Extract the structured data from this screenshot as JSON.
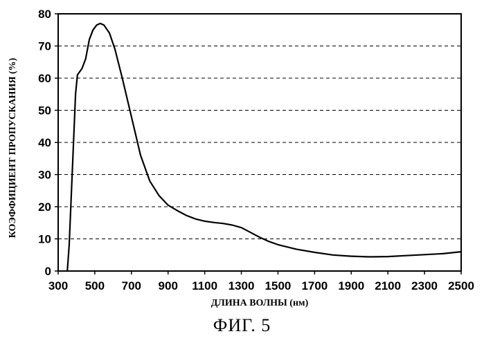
{
  "caption": "ФИГ. 5",
  "chart_data": {
    "type": "line",
    "title": "",
    "xlabel": "ДЛИНА ВОЛНЫ (нм)",
    "ylabel": "КОЭФФИЦИЕНТ ПРОПУСКАНИЯ (%)",
    "xlim": [
      300,
      2500
    ],
    "ylim": [
      0,
      80
    ],
    "x_ticks": [
      300,
      500,
      700,
      900,
      1100,
      1300,
      1500,
      1700,
      1900,
      2100,
      2300,
      2500
    ],
    "y_ticks": [
      0,
      10,
      20,
      30,
      40,
      50,
      60,
      70,
      80
    ],
    "grid": "horizontal dashed",
    "series": [
      {
        "x": [
          350,
          360,
          380,
          395,
          405,
          430,
          450,
          470,
          490,
          510,
          530,
          550,
          580,
          610,
          650,
          700,
          750,
          800,
          850,
          900,
          950,
          1000,
          1050,
          1100,
          1150,
          1200,
          1250,
          1300,
          1350,
          1400,
          1450,
          1500,
          1600,
          1700,
          1800,
          1900,
          2000,
          2100,
          2200,
          2300,
          2400,
          2500
        ],
        "y": [
          0,
          8,
          35,
          55,
          61,
          63,
          66,
          72,
          75,
          76.5,
          77,
          76.5,
          74,
          69,
          60,
          48,
          36,
          28,
          23.5,
          20.5,
          18.8,
          17.3,
          16.2,
          15.5,
          15.1,
          14.8,
          14.3,
          13.5,
          12,
          10.5,
          9.2,
          8.2,
          6.8,
          5.8,
          5,
          4.6,
          4.4,
          4.5,
          4.8,
          5.1,
          5.4,
          6
        ]
      }
    ]
  }
}
